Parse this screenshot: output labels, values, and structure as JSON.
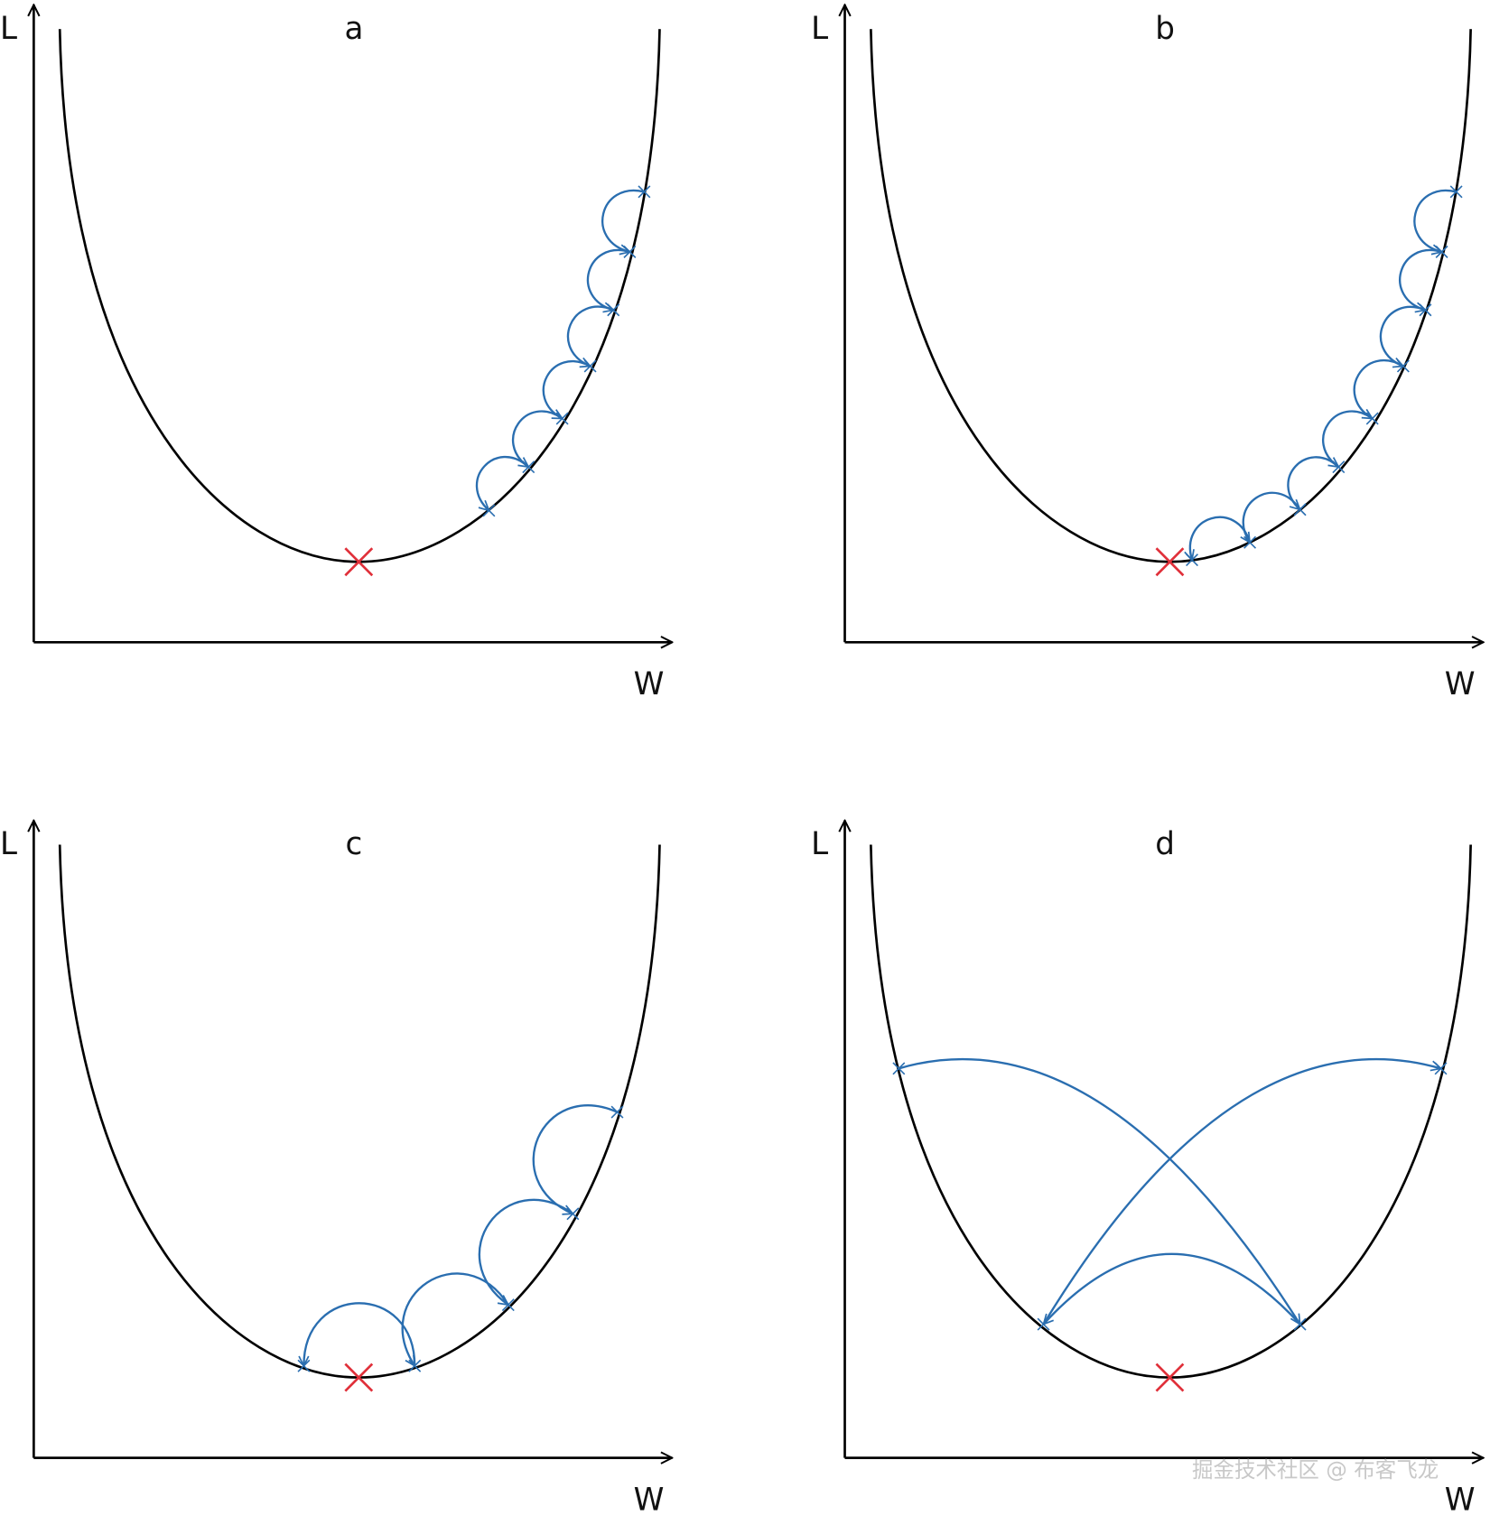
{
  "panels": [
    {
      "title": "a",
      "y_label": "L",
      "x_label": "W"
    },
    {
      "title": "b",
      "y_label": "L",
      "x_label": "W"
    },
    {
      "title": "c",
      "y_label": "L",
      "x_label": "W"
    },
    {
      "title": "d",
      "y_label": "L",
      "x_label": "W"
    }
  ],
  "watermark": "掘金技术社区 @ 布客飞龙"
}
